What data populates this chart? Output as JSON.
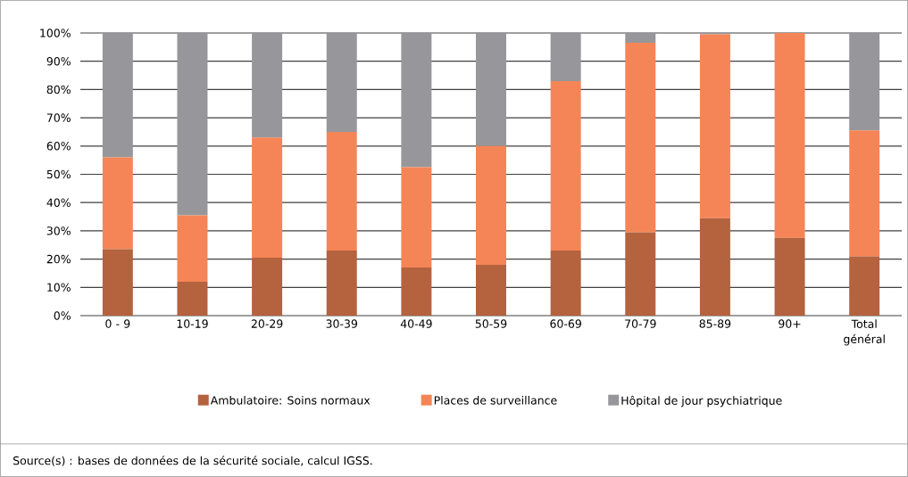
{
  "chart_data": {
    "type": "bar",
    "stacked": true,
    "categories": [
      "0 - 9",
      "10-19",
      "20-29",
      "30-39",
      "40-49",
      "50-59",
      "60-69",
      "70-79",
      "85-89",
      "90+",
      "Total général"
    ],
    "series": [
      {
        "name": "Ambulatoire: Soins normaux",
        "color": "#b5623e",
        "values": [
          23.5,
          12,
          20.5,
          23,
          17,
          18,
          23,
          29.5,
          34.5,
          27.5,
          21
        ]
      },
      {
        "name": "Places de surveillance",
        "color": "#f58557",
        "values": [
          32.5,
          23.5,
          42.5,
          42,
          35.5,
          42,
          60,
          67,
          65,
          72.5,
          44.5
        ]
      },
      {
        "name": "Hôpital de jour psychiatrique",
        "color": "#97979b",
        "values": [
          44,
          64.5,
          37,
          35,
          47.5,
          40,
          17,
          3.5,
          0.5,
          0,
          34.5
        ]
      }
    ],
    "ylim": [
      0,
      100
    ],
    "yticks": [
      {
        "value": 0,
        "label": "0%"
      },
      {
        "value": 10,
        "label": "10%"
      },
      {
        "value": 20,
        "label": "20%"
      },
      {
        "value": 30,
        "label": "30%"
      },
      {
        "value": 40,
        "label": "40%"
      },
      {
        "value": 50,
        "label": "50%"
      },
      {
        "value": 60,
        "label": "60%"
      },
      {
        "value": 70,
        "label": "70%"
      },
      {
        "value": 80,
        "label": "80%"
      },
      {
        "value": 90,
        "label": "90%"
      },
      {
        "value": 100,
        "label": "100%"
      }
    ],
    "grid": "y",
    "legend": "bottom",
    "annotations": [
      "Source(s) : bases de données de la sécurité sociale, calcul IGSS."
    ]
  }
}
